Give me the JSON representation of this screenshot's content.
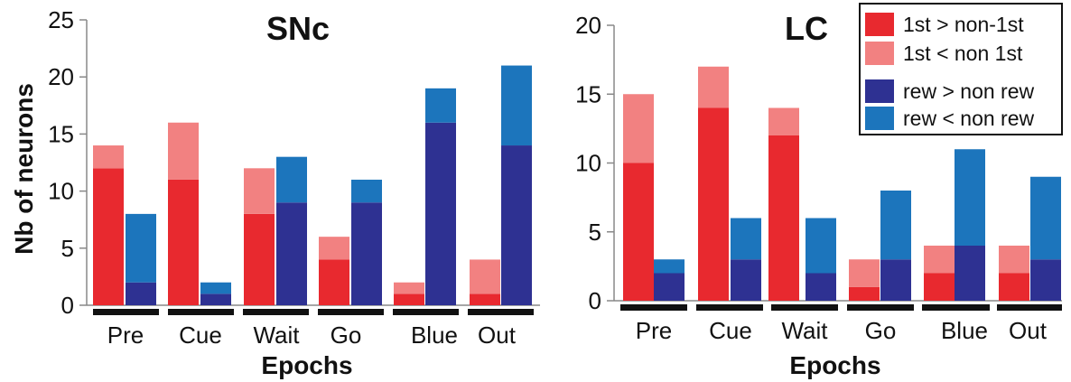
{
  "colors": {
    "first_gt": "#e8292f",
    "first_lt": "#f28181",
    "rew_gt": "#2e3192",
    "rew_lt": "#1c75bc",
    "axis": "#888888",
    "epoch_bar": "#111111"
  },
  "ylabel": "Nb of neurons",
  "legend": {
    "items": [
      {
        "label": "1st > non-1st",
        "color": "#e8292f"
      },
      {
        "label": "1st < non 1st",
        "color": "#f28181"
      },
      {
        "label": "rew > non rew",
        "color": "#2e3192"
      },
      {
        "label": "rew < non rew",
        "color": "#1c75bc"
      }
    ]
  },
  "chart_data": [
    {
      "type": "bar",
      "title": "SNc",
      "xlabel": "Epochs",
      "ylabel": "Nb of neurons",
      "ylim": [
        0,
        25
      ],
      "yticks": [
        0,
        5,
        10,
        15,
        20,
        25
      ],
      "categories": [
        "Pre",
        "Cue",
        "Wait",
        "Go",
        "Blue",
        "Out"
      ],
      "stacked": true,
      "groups": [
        {
          "name": "first",
          "segments": [
            {
              "name": "1st > non-1st",
              "values": [
                12,
                11,
                8,
                4,
                1,
                1
              ]
            },
            {
              "name": "1st < non 1st",
              "values": [
                2,
                5,
                4,
                2,
                1,
                3
              ]
            }
          ]
        },
        {
          "name": "reward",
          "segments": [
            {
              "name": "rew > non rew",
              "values": [
                2,
                1,
                9,
                9,
                16,
                14
              ]
            },
            {
              "name": "rew < non rew",
              "values": [
                6,
                1,
                4,
                2,
                3,
                7
              ]
            }
          ]
        }
      ]
    },
    {
      "type": "bar",
      "title": "LC",
      "xlabel": "Epochs",
      "ylim": [
        0,
        20
      ],
      "yticks": [
        0,
        5,
        10,
        15,
        20
      ],
      "categories": [
        "Pre",
        "Cue",
        "Wait",
        "Go",
        "Blue",
        "Out"
      ],
      "stacked": true,
      "legend_position": "top-right",
      "groups": [
        {
          "name": "first",
          "segments": [
            {
              "name": "1st > non-1st",
              "values": [
                10,
                14,
                12,
                1,
                2,
                2
              ]
            },
            {
              "name": "1st < non 1st",
              "values": [
                5,
                3,
                2,
                2,
                2,
                2
              ]
            }
          ]
        },
        {
          "name": "reward",
          "segments": [
            {
              "name": "rew > non rew",
              "values": [
                2,
                3,
                2,
                3,
                4,
                3
              ]
            },
            {
              "name": "rew < non rew",
              "values": [
                1,
                3,
                4,
                5,
                7,
                6
              ]
            }
          ]
        }
      ]
    }
  ]
}
